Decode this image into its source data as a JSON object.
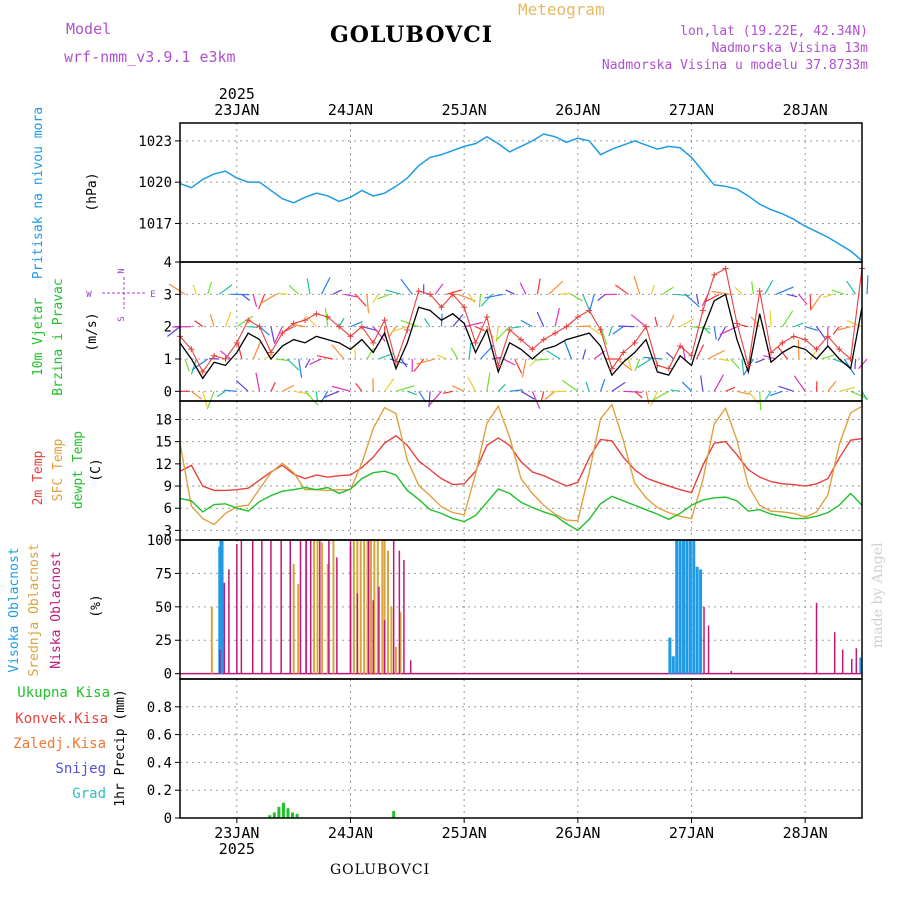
{
  "header": {
    "model_label": "Model",
    "model_value": "wrf-nmm_v3.9.1  e3km",
    "title": "GOLUBOVCI",
    "subtitle": "Meteogram",
    "lonlat": "lon,lat (19.22E, 42.34N)",
    "elevation": "Nadmorska Visina 13m",
    "model_elevation": "Nadmorska Visina u modelu 37.8733m",
    "footer_station": "GOLUBOVCI",
    "watermark": "made by Angel"
  },
  "colors": {
    "pressure": "#1e9be6",
    "temp2m": "#e8413c",
    "sfctemp": "#e0a040",
    "dewpt": "#22c02a",
    "high_cloud": "#1e9be6",
    "mid_cloud": "#d9a53c",
    "low_cloud": "#c0187a",
    "wind_speed": "#000000",
    "wind_gust": "#e8413c",
    "precip": "#22c02a",
    "axis_label_wind": "#22c02a",
    "axis_label_purple": "#a040d0"
  },
  "chart_data": [
    {
      "type": "line",
      "name": "pressure",
      "title": "Pritisak na nivou mora",
      "ylabel": "(hPa)",
      "ylim": [
        1014.2,
        1024.3
      ],
      "yticks": [
        1017,
        1020,
        1023
      ],
      "x_day_labels": [
        "23JAN",
        "24JAN",
        "25JAN",
        "26JAN",
        "27JAN",
        "28JAN"
      ],
      "x_year_label": "2025",
      "x_start_day": 22.5,
      "x_end_day": 28.5,
      "x": [
        22.5,
        22.6,
        22.7,
        22.8,
        22.9,
        23.0,
        23.1,
        23.2,
        23.3,
        23.4,
        23.5,
        23.6,
        23.7,
        23.8,
        23.9,
        24.0,
        24.1,
        24.2,
        24.3,
        24.4,
        24.5,
        24.6,
        24.7,
        24.8,
        24.9,
        25.0,
        25.1,
        25.2,
        25.3,
        25.4,
        25.5,
        25.6,
        25.7,
        25.8,
        25.9,
        26.0,
        26.1,
        26.2,
        26.3,
        26.4,
        26.5,
        26.6,
        26.7,
        26.8,
        26.9,
        27.0,
        27.1,
        27.2,
        27.3,
        27.4,
        27.5,
        27.6,
        27.7,
        27.8,
        27.9,
        28.0,
        28.1,
        28.2,
        28.3,
        28.4,
        28.5
      ],
      "values": [
        1019.9,
        1019.6,
        1020.2,
        1020.6,
        1020.8,
        1020.3,
        1020.0,
        1020.0,
        1019.4,
        1018.8,
        1018.5,
        1018.9,
        1019.2,
        1019.0,
        1018.6,
        1018.9,
        1019.4,
        1019.0,
        1019.2,
        1019.7,
        1020.3,
        1021.2,
        1021.8,
        1022.0,
        1022.3,
        1022.6,
        1022.8,
        1023.3,
        1022.8,
        1022.2,
        1022.6,
        1023.0,
        1023.5,
        1023.3,
        1022.9,
        1023.2,
        1023.0,
        1022.0,
        1022.4,
        1022.7,
        1023.0,
        1022.7,
        1022.4,
        1022.6,
        1022.5,
        1021.8,
        1020.8,
        1019.8,
        1019.7,
        1019.5,
        1019.0,
        1018.4,
        1018.0,
        1017.7,
        1017.3,
        1016.8,
        1016.4,
        1016.0,
        1015.5,
        1015.0,
        1014.3
      ]
    },
    {
      "type": "line",
      "name": "wind",
      "title": "10m Vjetar",
      "title2": "Brzina i Pravac",
      "ylabel": "(m/s)",
      "ylim": [
        -0.3,
        4.0
      ],
      "yticks": [
        0,
        1,
        2,
        3,
        4
      ],
      "compass": {
        "north": "N",
        "south": "S",
        "west": "W",
        "east": "E"
      },
      "x": [
        22.5,
        22.6,
        22.7,
        22.8,
        22.9,
        23.0,
        23.1,
        23.2,
        23.3,
        23.4,
        23.5,
        23.6,
        23.7,
        23.8,
        23.9,
        24.0,
        24.1,
        24.2,
        24.3,
        24.4,
        24.5,
        24.6,
        24.7,
        24.8,
        24.9,
        25.0,
        25.1,
        25.2,
        25.3,
        25.4,
        25.5,
        25.6,
        25.7,
        25.8,
        25.9,
        26.0,
        26.1,
        26.2,
        26.3,
        26.4,
        26.5,
        26.6,
        26.7,
        26.8,
        26.9,
        27.0,
        27.1,
        27.2,
        27.3,
        27.4,
        27.5,
        27.6,
        27.7,
        27.8,
        27.9,
        28.0,
        28.1,
        28.2,
        28.3,
        28.4,
        28.5
      ],
      "speed": [
        1.5,
        1.0,
        0.4,
        0.9,
        0.8,
        1.2,
        1.8,
        1.6,
        1.0,
        1.4,
        1.6,
        1.5,
        1.7,
        1.6,
        1.5,
        1.3,
        1.6,
        1.2,
        1.8,
        0.7,
        1.5,
        2.6,
        2.5,
        2.2,
        2.4,
        2.1,
        1.2,
        1.9,
        0.6,
        1.5,
        1.3,
        1.0,
        1.3,
        1.4,
        1.6,
        1.7,
        1.8,
        1.4,
        0.5,
        0.9,
        1.2,
        1.6,
        0.6,
        0.5,
        1.1,
        0.8,
        1.9,
        2.8,
        3.0,
        1.6,
        0.6,
        2.4,
        0.9,
        1.2,
        1.4,
        1.3,
        1.0,
        1.4,
        1.0,
        0.7,
        2.6
      ],
      "gust": [
        1.7,
        1.3,
        0.6,
        1.1,
        1.0,
        1.5,
        2.2,
        2.0,
        1.2,
        1.8,
        2.1,
        2.2,
        2.4,
        2.3,
        2.0,
        1.7,
        2.0,
        1.5,
        2.2,
        0.9,
        1.9,
        3.1,
        3.0,
        2.6,
        3.0,
        2.6,
        1.5,
        2.3,
        0.8,
        1.9,
        1.6,
        1.3,
        1.6,
        1.8,
        2.0,
        2.3,
        2.5,
        1.9,
        0.7,
        1.2,
        1.5,
        2.0,
        0.8,
        0.7,
        1.4,
        1.1,
        2.5,
        3.6,
        3.8,
        2.1,
        0.8,
        3.1,
        1.2,
        1.5,
        1.7,
        1.6,
        1.3,
        1.7,
        1.3,
        1.0,
        3.8
      ]
    },
    {
      "type": "line",
      "name": "temperature",
      "labels": [
        "2m Temp",
        "SFC Temp",
        "dewpt Temp"
      ],
      "ylabel": "(C)",
      "ylim": [
        1.7,
        20.5
      ],
      "yticks": [
        3,
        6,
        9,
        12,
        15,
        18
      ],
      "x": [
        22.5,
        22.6,
        22.7,
        22.8,
        22.9,
        23.0,
        23.1,
        23.2,
        23.3,
        23.4,
        23.5,
        23.6,
        23.7,
        23.8,
        23.9,
        24.0,
        24.1,
        24.2,
        24.3,
        24.4,
        24.5,
        24.6,
        24.7,
        24.8,
        24.9,
        25.0,
        25.1,
        25.2,
        25.3,
        25.4,
        25.5,
        25.6,
        25.7,
        25.8,
        25.9,
        26.0,
        26.1,
        26.2,
        26.3,
        26.4,
        26.5,
        26.6,
        26.7,
        26.8,
        26.9,
        27.0,
        27.1,
        27.2,
        27.3,
        27.4,
        27.5,
        27.6,
        27.7,
        27.8,
        27.9,
        28.0,
        28.1,
        28.2,
        28.3,
        28.4,
        28.5
      ],
      "series": [
        {
          "name": "2m Temp",
          "values": [
            11.0,
            11.8,
            9.0,
            8.4,
            8.4,
            8.5,
            8.7,
            9.8,
            10.9,
            11.8,
            10.6,
            10.0,
            10.5,
            10.2,
            10.4,
            10.5,
            11.5,
            12.9,
            14.8,
            15.8,
            14.5,
            12.4,
            11.2,
            10.0,
            9.2,
            9.3,
            11.0,
            14.5,
            15.5,
            14.5,
            12.3,
            10.9,
            10.4,
            9.7,
            9.0,
            9.5,
            12.8,
            15.3,
            15.1,
            12.9,
            11.2,
            10.1,
            9.5,
            9.0,
            8.5,
            8.1,
            11.8,
            14.8,
            15.0,
            13.2,
            11.2,
            10.2,
            9.6,
            9.3,
            9.2,
            9.0,
            9.3,
            10.0,
            12.8,
            15.2,
            15.4
          ]
        },
        {
          "name": "SFC Temp",
          "values": [
            14.8,
            6.3,
            4.6,
            3.8,
            5.3,
            6.2,
            6.4,
            8.6,
            10.8,
            12.1,
            10.8,
            8.5,
            8.5,
            8.4,
            8.5,
            8.5,
            12.1,
            16.8,
            19.6,
            18.8,
            12.5,
            9.1,
            7.7,
            6.2,
            5.4,
            5.1,
            10.6,
            17.5,
            19.8,
            15.6,
            10.0,
            8.0,
            6.4,
            5.2,
            4.4,
            4.3,
            10.8,
            18.1,
            20.0,
            15.2,
            9.4,
            7.4,
            6.1,
            5.4,
            4.9,
            4.6,
            9.8,
            17.4,
            19.5,
            15.2,
            9.0,
            6.4,
            5.6,
            5.5,
            5.3,
            4.8,
            5.5,
            7.8,
            14.6,
            18.9,
            19.8
          ]
        },
        {
          "name": "dewpt Temp",
          "values": [
            7.3,
            7.0,
            5.5,
            6.5,
            6.6,
            6.0,
            5.6,
            6.9,
            7.7,
            8.3,
            8.5,
            8.8,
            8.5,
            8.8,
            8.0,
            8.6,
            10.0,
            10.8,
            11.0,
            10.5,
            8.4,
            7.2,
            5.8,
            5.3,
            4.6,
            4.2,
            5.0,
            6.8,
            8.6,
            8.0,
            6.8,
            6.1,
            5.5,
            5.0,
            3.9,
            3.0,
            4.5,
            6.6,
            7.6,
            7.0,
            6.4,
            5.8,
            5.2,
            4.5,
            5.3,
            6.4,
            7.1,
            7.4,
            7.5,
            7.0,
            5.6,
            5.8,
            5.2,
            4.9,
            4.6,
            4.6,
            4.9,
            5.4,
            6.4,
            8.0,
            6.4
          ]
        }
      ]
    },
    {
      "type": "bar",
      "name": "cloud",
      "labels": [
        "Visoka Oblacnost",
        "Srednja Oblacnost",
        "Niska Oblacnost"
      ],
      "ylabel": "(%)",
      "ylim": [
        -4,
        100
      ],
      "yticks": [
        0,
        25,
        50,
        75,
        100
      ],
      "series": [
        {
          "name": "Visoka Oblacnost",
          "points": [
            [
              22.85,
              95
            ],
            [
              22.86,
              100
            ],
            [
              22.87,
              100
            ],
            [
              26.81,
              27
            ],
            [
              26.84,
              13
            ],
            [
              26.87,
              100
            ],
            [
              26.9,
              100
            ],
            [
              26.93,
              100
            ],
            [
              26.96,
              100
            ],
            [
              26.99,
              100
            ],
            [
              27.02,
              100
            ],
            [
              27.05,
              80
            ],
            [
              27.08,
              78
            ],
            [
              28.49,
              12
            ]
          ]
        },
        {
          "name": "Srednja Oblacnost",
          "points": [
            [
              22.78,
              50
            ],
            [
              23.5,
              82
            ],
            [
              23.54,
              67
            ],
            [
              23.61,
              100
            ],
            [
              23.68,
              100
            ],
            [
              23.71,
              100
            ],
            [
              23.75,
              98
            ],
            [
              23.8,
              82
            ],
            [
              23.85,
              100
            ],
            [
              24.0,
              95
            ],
            [
              24.03,
              100
            ],
            [
              24.06,
              100
            ],
            [
              24.09,
              100
            ],
            [
              24.12,
              100
            ],
            [
              24.15,
              100
            ],
            [
              24.18,
              100
            ],
            [
              24.21,
              100
            ],
            [
              24.24,
              100
            ],
            [
              24.28,
              100
            ],
            [
              24.3,
              100
            ],
            [
              24.33,
              92
            ],
            [
              24.36,
              50
            ],
            [
              24.4,
              20
            ],
            [
              24.44,
              46
            ]
          ]
        },
        {
          "name": "Niska Oblacnost",
          "points": [
            [
              22.85,
              18
            ],
            [
              22.89,
              68
            ],
            [
              22.93,
              78
            ],
            [
              23.0,
              97
            ],
            [
              23.04,
              100
            ],
            [
              23.14,
              100
            ],
            [
              23.22,
              100
            ],
            [
              23.3,
              100
            ],
            [
              23.39,
              100
            ],
            [
              23.47,
              100
            ],
            [
              23.56,
              100
            ],
            [
              23.61,
              100
            ],
            [
              23.65,
              100
            ],
            [
              23.73,
              100
            ],
            [
              23.81,
              100
            ],
            [
              23.88,
              87
            ],
            [
              24.0,
              100
            ],
            [
              24.06,
              60
            ],
            [
              24.16,
              100
            ],
            [
              24.2,
              55
            ],
            [
              24.25,
              65
            ],
            [
              24.3,
              40
            ],
            [
              24.38,
              100
            ],
            [
              24.43,
              92
            ],
            [
              24.47,
              85
            ],
            [
              24.53,
              10
            ],
            [
              27.11,
              50
            ],
            [
              27.15,
              36
            ],
            [
              27.35,
              2
            ],
            [
              28.1,
              53
            ],
            [
              28.26,
              31
            ],
            [
              28.33,
              18
            ],
            [
              28.41,
              11
            ],
            [
              28.45,
              19
            ]
          ]
        }
      ]
    },
    {
      "type": "bar",
      "name": "precip",
      "labels": [
        "Ukupna Kisa",
        "Konvek.Kisa",
        "Zaledj.Kisa",
        "Snijeg",
        "Grad"
      ],
      "label_colors": [
        "#22c02a",
        "#e8413c",
        "#f07830",
        "#5050e0",
        "#30c0c0"
      ],
      "ylabel": "1hr Precip (mm)",
      "ylim": [
        0,
        1.0
      ],
      "yticks": [
        0,
        0.2,
        0.4,
        0.6,
        0.8
      ],
      "x_day_labels": [
        "23JAN",
        "24JAN",
        "25JAN",
        "26JAN",
        "27JAN",
        "28JAN"
      ],
      "x_year_label": "2025",
      "points": [
        [
          23.29,
          0.02
        ],
        [
          23.33,
          0.04
        ],
        [
          23.37,
          0.08
        ],
        [
          23.41,
          0.11
        ],
        [
          23.45,
          0.07
        ],
        [
          23.49,
          0.04
        ],
        [
          23.53,
          0.03
        ],
        [
          24.38,
          0.05
        ]
      ]
    }
  ]
}
